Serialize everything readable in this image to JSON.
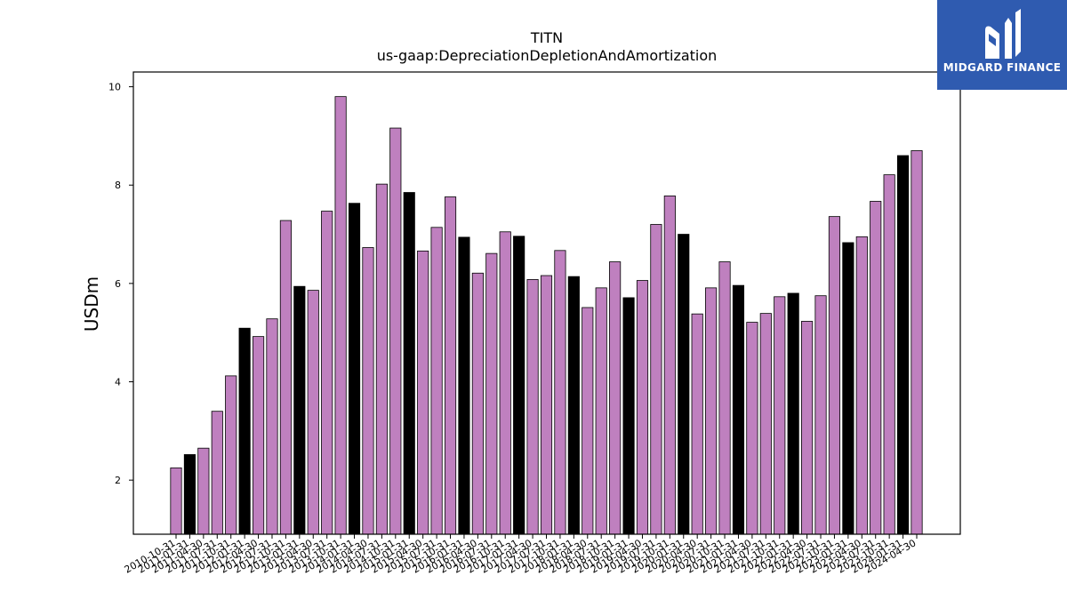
{
  "brand": {
    "name": "MIDGARD FINANCE",
    "logo_icon": "midgard-logo-icon",
    "color": "#2f5bb0"
  },
  "chart_data": {
    "type": "bar",
    "title": "TITN",
    "subtitle": "us-gaap:DepreciationDepletionAndAmortization",
    "xlabel": "",
    "ylabel": "USDm",
    "ylim": [
      0.9,
      10.3
    ],
    "yticks": [
      2,
      4,
      6,
      8,
      10
    ],
    "grid": false,
    "legend": "none",
    "colors": {
      "default": "#bf80bf",
      "highlight": "#000000",
      "edge": "#000000"
    },
    "categories": [
      "2010-10-31",
      "2011-01-31",
      "2011-04-30",
      "2011-07-31",
      "2011-10-31",
      "2012-01-31",
      "2012-04-30",
      "2012-07-31",
      "2012-10-31",
      "2013-01-31",
      "2013-04-30",
      "2013-07-31",
      "2013-10-31",
      "2014-01-31",
      "2014-04-30",
      "2014-07-31",
      "2014-10-31",
      "2015-01-31",
      "2015-04-30",
      "2015-07-31",
      "2015-10-31",
      "2016-01-31",
      "2016-04-30",
      "2016-07-31",
      "2016-10-31",
      "2017-01-31",
      "2017-04-30",
      "2017-07-31",
      "2017-10-31",
      "2018-01-31",
      "2018-04-30",
      "2018-07-31",
      "2018-10-31",
      "2019-01-31",
      "2019-04-30",
      "2019-07-31",
      "2019-10-31",
      "2020-01-31",
      "2020-04-30",
      "2020-07-31",
      "2020-10-31",
      "2021-01-31",
      "2021-04-30",
      "2021-07-31",
      "2021-10-31",
      "2022-01-31",
      "2022-04-30",
      "2022-07-31",
      "2022-10-31",
      "2023-01-31",
      "2023-04-30",
      "2023-07-31",
      "2023-10-31",
      "2024-01-31",
      "2024-04-30"
    ],
    "values": [
      2.25,
      2.52,
      2.65,
      3.4,
      4.12,
      5.09,
      4.92,
      5.28,
      7.28,
      5.94,
      5.86,
      7.47,
      9.8,
      7.63,
      6.73,
      8.02,
      9.16,
      7.85,
      6.66,
      7.14,
      7.76,
      6.94,
      6.21,
      6.61,
      7.05,
      6.96,
      6.08,
      6.16,
      6.67,
      6.14,
      5.51,
      5.91,
      6.44,
      5.71,
      6.06,
      7.2,
      7.78,
      7.0,
      5.38,
      5.91,
      6.44,
      5.96,
      5.21,
      5.39,
      5.73,
      5.8,
      5.23,
      5.75,
      7.36,
      6.83,
      6.95,
      7.67,
      8.21,
      8.6,
      8.7
    ],
    "highlighted": [
      false,
      true,
      false,
      false,
      false,
      true,
      false,
      false,
      false,
      true,
      false,
      false,
      false,
      true,
      false,
      false,
      false,
      true,
      false,
      false,
      false,
      true,
      false,
      false,
      false,
      true,
      false,
      false,
      false,
      true,
      false,
      false,
      false,
      true,
      false,
      false,
      false,
      true,
      false,
      false,
      false,
      true,
      false,
      false,
      false,
      true,
      false,
      false,
      false,
      true,
      false,
      false,
      false,
      true,
      false
    ]
  }
}
